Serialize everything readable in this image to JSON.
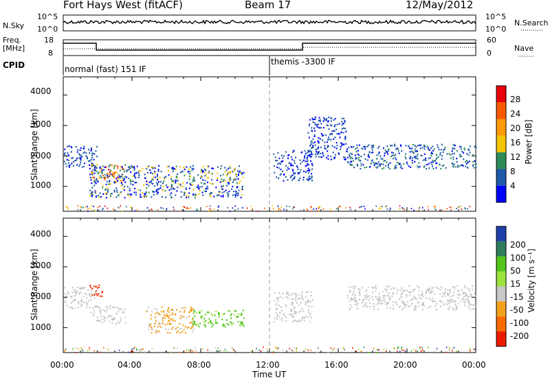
{
  "header": {
    "station": "Fort Hays West (fitACF)",
    "beam": "Beam 17",
    "date": "12/May/2012"
  },
  "top_panel": {
    "left_label": "N.Sky",
    "right_label": "N.Search",
    "left_ticks": [
      "10^5",
      "10^0"
    ],
    "right_ticks": [
      "10^5",
      "10^0"
    ]
  },
  "freq_panel": {
    "left_label_1": "Freq.",
    "left_label_2": "[MHz]",
    "right_label": "Nave",
    "left_ticks": [
      "18",
      "8"
    ],
    "right_ticks": [
      "60",
      "0"
    ]
  },
  "cpid": {
    "label": "CPID",
    "modes": [
      {
        "name": "normal (fast) 151 IF",
        "start_hour": 0
      },
      {
        "name": "themis -3300 IF",
        "start_hour": 12
      }
    ]
  },
  "x_axis": {
    "label": "Time UT",
    "ticks": [
      "00:00",
      "04:00",
      "08:00",
      "12:00",
      "16:00",
      "20:00",
      "00:00"
    ]
  },
  "power_colorbar": {
    "label": "Power [dB]",
    "ticks": [
      "28",
      "24",
      "20",
      "16",
      "12",
      "8",
      "4"
    ],
    "colors": [
      "#e8000b",
      "#ff5a00",
      "#ff9a00",
      "#f5c400",
      "#2e8b57",
      "#1e5aa8",
      "#0000ff"
    ]
  },
  "velocity_colorbar": {
    "label": "Velocity [m s⁻¹]",
    "ticks": [
      "200",
      "100",
      "50",
      "15",
      "-15",
      "-50",
      "-100",
      "-200"
    ],
    "colors": [
      "#1f3fa8",
      "#2e7d5b",
      "#52c41a",
      "#9be33c",
      "#c8c8c8",
      "#f2a11a",
      "#ff6a00",
      "#ee1a00"
    ]
  },
  "chart_data": [
    {
      "type": "heatmap",
      "title": "Power",
      "ylabel": "Slant Range [km]",
      "xlabel": "Time UT",
      "xlim_hours": [
        0,
        24
      ],
      "ylim": [
        180,
        4600
      ],
      "yticks": [
        1000,
        2000,
        3000,
        4000
      ],
      "regions": [
        {
          "t0": 0.0,
          "t1": 2.0,
          "r0": 1650,
          "r1": 2350,
          "level": "4-12 dB"
        },
        {
          "t0": 1.6,
          "t1": 3.6,
          "r0": 1150,
          "r1": 1750,
          "level": "16-28 dB"
        },
        {
          "t0": 1.5,
          "t1": 10.5,
          "r0": 650,
          "r1": 1700,
          "level": "4-20 dB"
        },
        {
          "t0": 12.2,
          "t1": 14.5,
          "r0": 1200,
          "r1": 2200,
          "level": "4-8 dB"
        },
        {
          "t0": 14.2,
          "t1": 16.5,
          "r0": 1900,
          "r1": 3300,
          "level": "4-8 dB"
        },
        {
          "t0": 16.5,
          "t1": 24.0,
          "r0": 1600,
          "r1": 2400,
          "level": "4-16 dB"
        }
      ]
    },
    {
      "type": "heatmap",
      "title": "Velocity",
      "ylabel": "Slant Range [km]",
      "xlabel": "Time UT",
      "xlim_hours": [
        0,
        24
      ],
      "ylim": [
        180,
        4600
      ],
      "yticks": [
        1000,
        2000,
        3000,
        4000
      ],
      "regions": [
        {
          "t0": 0.0,
          "t1": 2.0,
          "r0": 1650,
          "r1": 2350,
          "level": "-15 to 15 m/s"
        },
        {
          "t0": 1.5,
          "t1": 2.3,
          "r0": 2050,
          "r1": 2450,
          "level": "-100 to -200 m/s"
        },
        {
          "t0": 1.6,
          "t1": 3.6,
          "r0": 1150,
          "r1": 1750,
          "level": "-15 to 15 m/s"
        },
        {
          "t0": 4.8,
          "t1": 7.6,
          "r0": 850,
          "r1": 1700,
          "level": "-15 to -50 m/s"
        },
        {
          "t0": 7.5,
          "t1": 10.5,
          "r0": 1050,
          "r1": 1600,
          "level": "15 to 50 m/s"
        },
        {
          "t0": 12.2,
          "t1": 14.5,
          "r0": 1200,
          "r1": 2200,
          "level": "-15 to 15 m/s"
        },
        {
          "t0": 16.5,
          "t1": 24.0,
          "r0": 1600,
          "r1": 2400,
          "level": "-15 to 15 m/s"
        }
      ]
    }
  ]
}
